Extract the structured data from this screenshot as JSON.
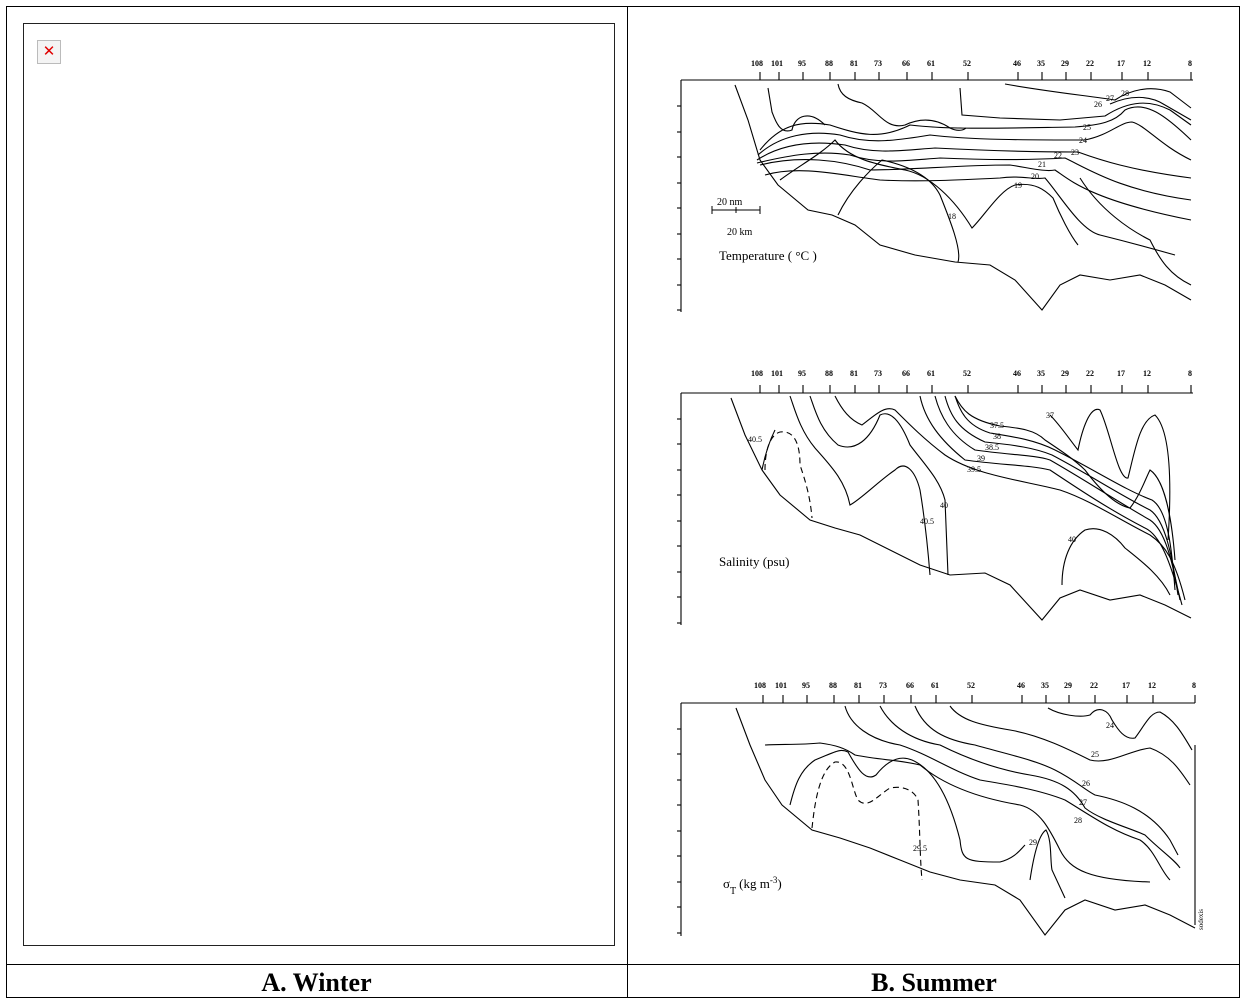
{
  "panels": {
    "winter": {
      "caption": "A. Winter",
      "image_icon": "broken-image-icon"
    },
    "summer": {
      "caption": "B. Summer"
    }
  },
  "stations": [
    "108",
    "101",
    "95",
    "88",
    "81",
    "73",
    "66",
    "61",
    "52",
    "46",
    "35",
    "29",
    "22",
    "17",
    "12",
    "8"
  ],
  "temperature": {
    "label": "Temperature ( °C )",
    "scale_nm": "20 nm",
    "scale_km": "20 km",
    "isolines": [
      "28",
      "27",
      "26",
      "25",
      "24",
      "23",
      "22",
      "21",
      "20",
      "19",
      "18"
    ]
  },
  "salinity": {
    "label": "Salinity (psu)",
    "isolines": [
      "37.5",
      "37",
      "38",
      "38.5",
      "39",
      "39.5",
      "40.5",
      "40",
      "40.5",
      "40"
    ]
  },
  "sigma": {
    "label_symbol": "σ",
    "label_sub": "T",
    "label_units": "(kg m",
    "label_exp": "-3",
    "label_close": ")",
    "isolines": [
      "24",
      "25",
      "26",
      "27",
      "28",
      "29",
      "29.5"
    ],
    "credit": "sodexis"
  }
}
